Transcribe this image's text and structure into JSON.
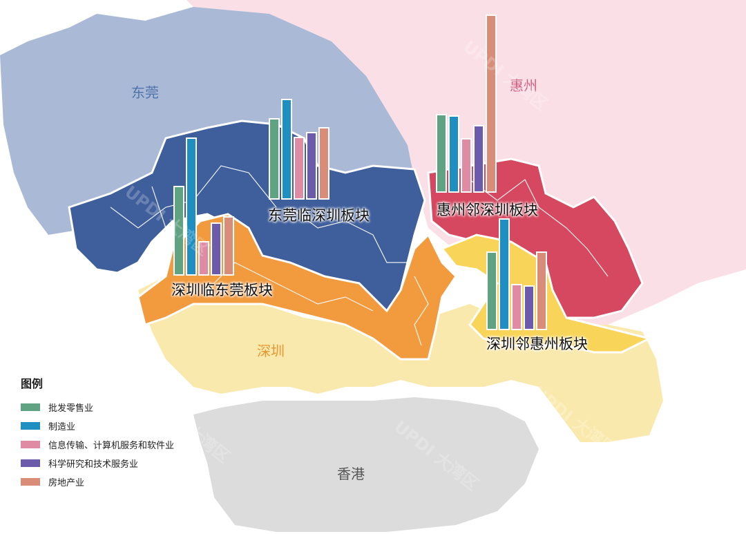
{
  "regions": {
    "dongguan": {
      "label": "东莞",
      "color": "#a9b9d6",
      "text_color": "#4f73aa"
    },
    "huizhou": {
      "label": "惠州",
      "color": "#fae0e6",
      "text_color": "#d05a7e"
    },
    "shenzhen": {
      "label": "深圳",
      "color": "#fae9ad",
      "text_color": "#e8962f"
    },
    "hongkong": {
      "label": "香港",
      "color": "#dcdcdc",
      "text_color": "#555555"
    }
  },
  "zone_colors": {
    "shenzhen_near_dongguan": "#f29a3e",
    "dongguan_near_shenzhen": "#3f5f9c",
    "huizhou_near_shenzhen": "#d5485f",
    "shenzhen_near_huizhou": "#f8d558"
  },
  "legend": {
    "title": "图例",
    "items": [
      {
        "label": "批发零售业",
        "color": "#5fa382"
      },
      {
        "label": "制造业",
        "color": "#1f8fc2"
      },
      {
        "label": "信息传输、计算机服务和软件业",
        "color": "#de8ba3"
      },
      {
        "label": "科学研究和技术服务业",
        "color": "#6c5aab"
      },
      {
        "label": "房地产业",
        "color": "#d98c77"
      }
    ]
  },
  "chart_data": {
    "type": "bar",
    "series_names": [
      "批发零售业",
      "制造业",
      "信息传输、计算机服务和软件业",
      "科学研究和技术服务业",
      "房地产业"
    ],
    "clusters": [
      {
        "name": "深圳临东莞板块",
        "values": [
          128,
          198,
          48,
          75,
          84
        ]
      },
      {
        "name": "东莞临深圳板块",
        "values": [
          116,
          144,
          89,
          96,
          103
        ]
      },
      {
        "name": "惠州邻深圳板块",
        "values": [
          112,
          110,
          77,
          96,
          256
        ]
      },
      {
        "name": "深圳邻惠州板块",
        "values": [
          112,
          160,
          65,
          63,
          112
        ]
      }
    ]
  },
  "watermark": {
    "text": "UPDI 大湾区"
  }
}
